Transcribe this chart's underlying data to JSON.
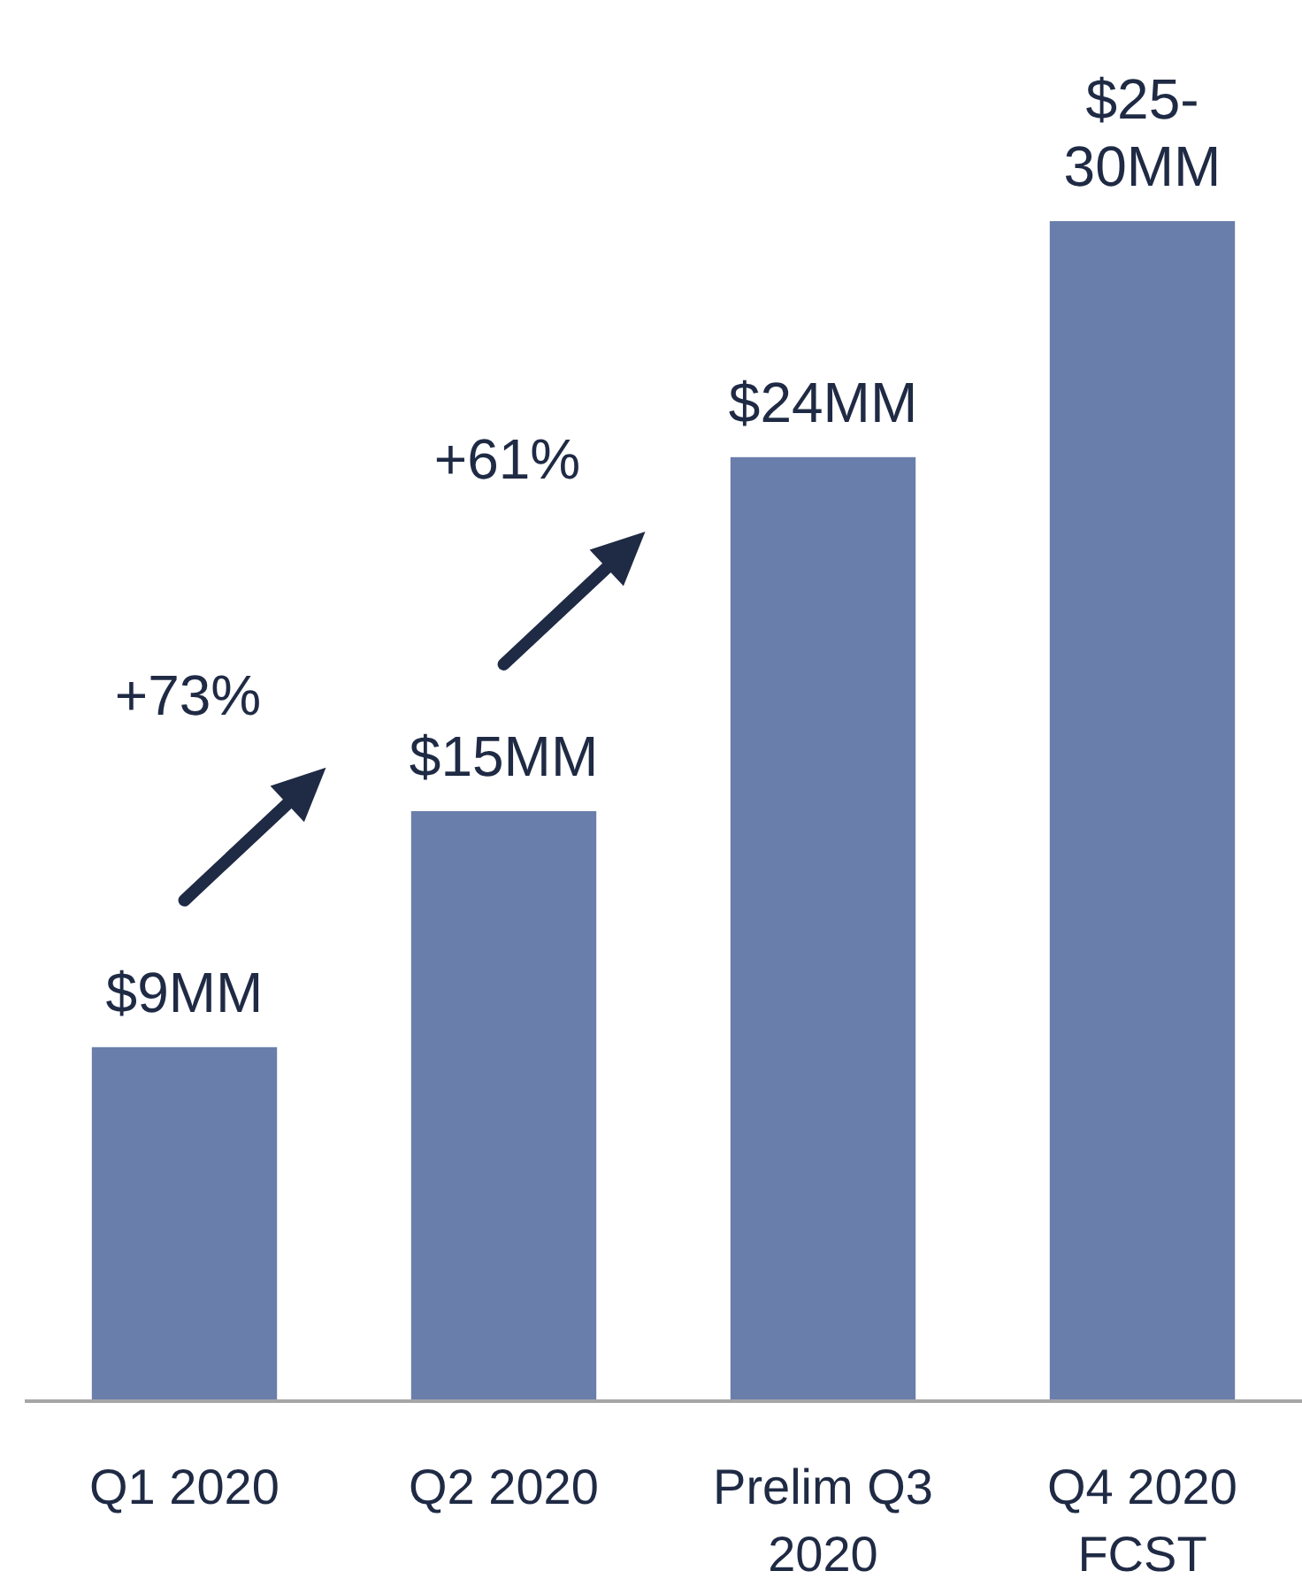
{
  "chart_data": {
    "type": "bar",
    "categories": [
      "Q1 2020",
      "Q2 2020",
      "Prelim Q3 2020",
      "Q4 2020 FCST"
    ],
    "values": [
      9,
      15,
      24,
      30
    ],
    "value_labels": [
      "$9MM",
      "$15MM",
      "$24MM",
      "$25-30MM"
    ],
    "color": "#6a7eab",
    "annotations": [
      "+73%",
      "+61%"
    ]
  }
}
